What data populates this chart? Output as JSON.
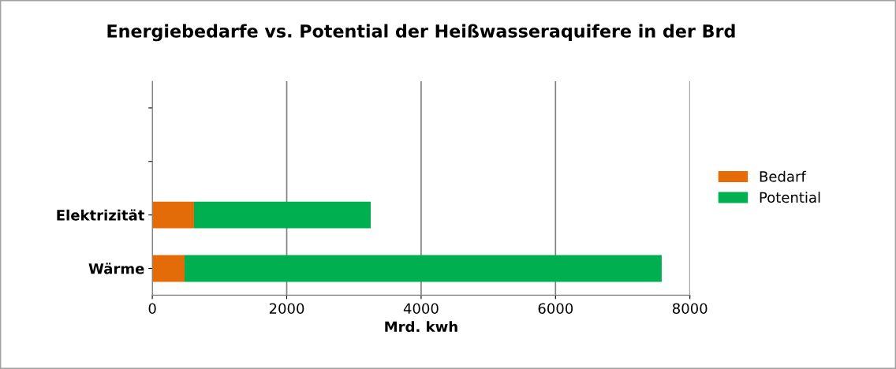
{
  "chart_data": {
    "type": "bar",
    "title": "Energiebedarfe vs. Potential der Heißwasseraquifere in der Brd",
    "xlabel": "Mrd. kwh",
    "orientation": "horizontal",
    "stacked": true,
    "categories": [
      null,
      null,
      "Elektrizität",
      "Wärme"
    ],
    "series": [
      {
        "name": "Bedarf",
        "color": "#e36c09",
        "values": [
          null,
          null,
          620,
          480
        ]
      },
      {
        "name": "Potential",
        "color": "#00b050",
        "values": [
          null,
          null,
          2630,
          7100
        ]
      }
    ],
    "xlim": [
      0,
      8000
    ],
    "xticks": [
      0,
      2000,
      4000,
      6000,
      8000
    ],
    "grid": "x",
    "legend": "right"
  }
}
